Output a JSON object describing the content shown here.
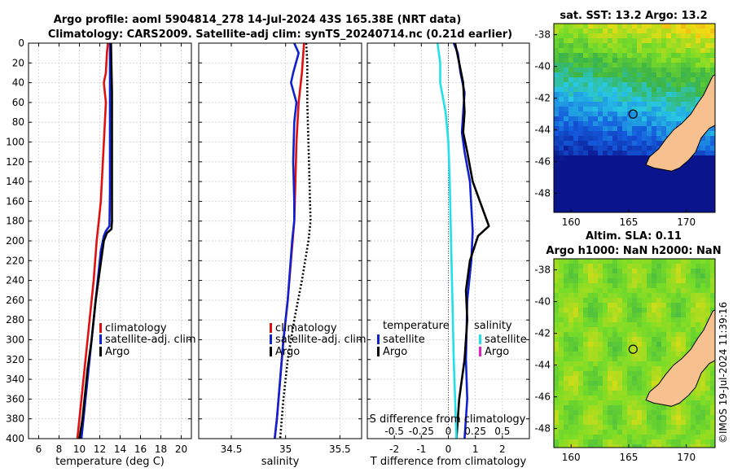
{
  "chart_data": {
    "type": "line",
    "title_line1": "Argo profile: aoml 5904814_278 14-Jul-2024 43S 165.38E (NRT data)",
    "title_line2": "Climatology: CARS2009. Satellite-adj clim: synTS_20240714.nc (0.21d earlier)",
    "depth_ticks": [
      "0",
      "20",
      "40",
      "60",
      "80",
      "100",
      "120",
      "140",
      "160",
      "180",
      "200",
      "220",
      "240",
      "260",
      "280",
      "300",
      "320",
      "340",
      "360",
      "380",
      "400"
    ],
    "panels": [
      {
        "id": "temperature",
        "xlabel": "temperature (deg C)",
        "xlim": [
          5,
          21
        ],
        "xticks": [
          6,
          8,
          10,
          12,
          14,
          16,
          18,
          20
        ],
        "ylim": [
          0,
          400
        ],
        "legend": [
          "climatology",
          "satellite-adj. clim",
          "Argo"
        ],
        "series": [
          {
            "name": "climatology",
            "color": "#e01010",
            "style": "solid",
            "points": [
              [
                12.8,
                0
              ],
              [
                12.7,
                10
              ],
              [
                12.6,
                30
              ],
              [
                12.4,
                40
              ],
              [
                12.6,
                60
              ],
              [
                12.5,
                80
              ],
              [
                12.3,
                120
              ],
              [
                12.1,
                160
              ],
              [
                11.9,
                180
              ],
              [
                11.7,
                200
              ],
              [
                11.4,
                240
              ],
              [
                11.0,
                280
              ],
              [
                10.6,
                320
              ],
              [
                10.2,
                360
              ],
              [
                9.8,
                400
              ]
            ]
          },
          {
            "name": "satellite-adj. clim",
            "color": "#1020d0",
            "style": "solid",
            "points": [
              [
                13.0,
                0
              ],
              [
                13.0,
                50
              ],
              [
                13.0,
                100
              ],
              [
                13.0,
                150
              ],
              [
                12.95,
                185
              ],
              [
                12.6,
                190
              ],
              [
                12.4,
                195
              ],
              [
                12.1,
                210
              ],
              [
                11.8,
                240
              ],
              [
                11.4,
                280
              ],
              [
                11.0,
                320
              ],
              [
                10.6,
                360
              ],
              [
                10.2,
                400
              ]
            ]
          },
          {
            "name": "Argo",
            "color": "#000000",
            "style": "solid",
            "points": [
              [
                13.1,
                0
              ],
              [
                13.2,
                50
              ],
              [
                13.2,
                100
              ],
              [
                13.2,
                150
              ],
              [
                13.2,
                180
              ],
              [
                13.15,
                188
              ],
              [
                12.7,
                192
              ],
              [
                12.4,
                200
              ],
              [
                12.0,
                230
              ],
              [
                11.6,
                260
              ],
              [
                11.2,
                300
              ],
              [
                10.8,
                330
              ],
              [
                10.5,
                360
              ],
              [
                10.3,
                380
              ],
              [
                10.0,
                400
              ]
            ]
          }
        ]
      },
      {
        "id": "salinity",
        "xlabel": "salinity",
        "xlim": [
          34.2,
          35.7
        ],
        "xticks": [
          34.5,
          35,
          35.5
        ],
        "ylim": [
          0,
          400
        ],
        "legend": [
          "climatology",
          "satellite-adj. clim",
          "Argo"
        ],
        "series": [
          {
            "name": "climatology",
            "color": "#e01010",
            "style": "solid",
            "points": [
              [
                35.17,
                0
              ],
              [
                35.15,
                30
              ],
              [
                35.12,
                60
              ],
              [
                35.1,
                100
              ],
              [
                35.09,
                140
              ],
              [
                35.08,
                180
              ],
              [
                35.05,
                220
              ],
              [
                35.02,
                260
              ],
              [
                34.98,
                300
              ],
              [
                34.95,
                340
              ],
              [
                34.92,
                380
              ],
              [
                34.9,
                400
              ]
            ]
          },
          {
            "name": "satellite-adj. clim",
            "color": "#1020d0",
            "style": "solid",
            "points": [
              [
                35.08,
                0
              ],
              [
                35.12,
                10
              ],
              [
                35.07,
                30
              ],
              [
                35.05,
                40
              ],
              [
                35.1,
                60
              ],
              [
                35.08,
                80
              ],
              [
                35.07,
                120
              ],
              [
                35.08,
                160
              ],
              [
                35.08,
                180
              ],
              [
                35.06,
                200
              ],
              [
                35.02,
                260
              ],
              [
                34.98,
                300
              ],
              [
                34.95,
                340
              ],
              [
                34.92,
                380
              ],
              [
                34.9,
                400
              ]
            ]
          },
          {
            "name": "Argo",
            "color": "#000000",
            "style": "dotted",
            "points": [
              [
                35.19,
                0
              ],
              [
                35.2,
                20
              ],
              [
                35.2,
                60
              ],
              [
                35.21,
                100
              ],
              [
                35.22,
                140
              ],
              [
                35.23,
                180
              ],
              [
                35.21,
                200
              ],
              [
                35.15,
                240
              ],
              [
                35.08,
                280
              ],
              [
                35.02,
                320
              ],
              [
                34.98,
                360
              ],
              [
                34.95,
                400
              ]
            ]
          }
        ]
      },
      {
        "id": "difference",
        "xlabel": "T difference from climatology",
        "xlabel_top": "S difference from climatology",
        "xlim": [
          -3,
          3
        ],
        "xticks": [
          -2,
          -1,
          0,
          1,
          2
        ],
        "top_ticks": [
          "-0.5",
          "-0.25",
          "0",
          "0.25",
          "0.5"
        ],
        "ylim": [
          0,
          400
        ],
        "legend_left_title": "temperature",
        "legend_right_title": "salinity",
        "legend_left": [
          "satellite",
          "Argo"
        ],
        "legend_right": [
          "satellite",
          "Argo"
        ],
        "series": [
          {
            "name": "T satellite",
            "color": "#1020d0",
            "style": "solid",
            "points": [
              [
                0.2,
                0
              ],
              [
                0.35,
                10
              ],
              [
                0.45,
                30
              ],
              [
                0.6,
                50
              ],
              [
                0.55,
                70
              ],
              [
                0.5,
                90
              ],
              [
                0.6,
                110
              ],
              [
                0.8,
                140
              ],
              [
                0.9,
                190
              ],
              [
                0.85,
                220
              ],
              [
                0.7,
                260
              ],
              [
                0.65,
                320
              ],
              [
                0.7,
                360
              ],
              [
                0.6,
                400
              ]
            ]
          },
          {
            "name": "T Argo",
            "color": "#000000",
            "style": "solid",
            "points": [
              [
                0.25,
                0
              ],
              [
                0.4,
                20
              ],
              [
                0.55,
                40
              ],
              [
                0.6,
                70
              ],
              [
                0.55,
                90
              ],
              [
                0.7,
                110
              ],
              [
                0.9,
                140
              ],
              [
                1.3,
                170
              ],
              [
                1.5,
                185
              ],
              [
                1.1,
                195
              ],
              [
                0.8,
                220
              ],
              [
                0.65,
                250
              ],
              [
                0.7,
                280
              ],
              [
                0.6,
                320
              ],
              [
                0.4,
                360
              ],
              [
                0.3,
                400
              ]
            ]
          },
          {
            "name": "S satellite",
            "color": "#20e0e8",
            "style": "solid",
            "points": [
              [
                -0.4,
                0
              ],
              [
                -0.3,
                20
              ],
              [
                -0.3,
                40
              ],
              [
                -0.1,
                70
              ],
              [
                0.0,
                100
              ],
              [
                0.05,
                140
              ],
              [
                0.1,
                200
              ],
              [
                0.15,
                260
              ],
              [
                0.2,
                320
              ],
              [
                0.25,
                360
              ],
              [
                0.3,
                400
              ]
            ]
          },
          {
            "name": "S Argo",
            "color": "#e020c0",
            "style": "solid",
            "points": []
          }
        ]
      }
    ],
    "maps": [
      {
        "id": "sst-map",
        "title": "sat. SST: 13.2 Argo: 13.2",
        "yticks": [
          "-38",
          "-40",
          "-42",
          "-44",
          "-46",
          "-48"
        ],
        "xticks": [
          "160",
          "165",
          "170"
        ]
      },
      {
        "id": "sla-map",
        "title_line1": "Altim. SLA: 0.11",
        "title_line2": "Argo h1000: NaN h2000: NaN",
        "yticks": [
          "-38",
          "-40",
          "-42",
          "-44",
          "-46",
          "-48"
        ],
        "xticks": [
          "160",
          "165",
          "170"
        ]
      }
    ],
    "watermark": "©IMOS 19-Jul-2024 11:39:16"
  }
}
